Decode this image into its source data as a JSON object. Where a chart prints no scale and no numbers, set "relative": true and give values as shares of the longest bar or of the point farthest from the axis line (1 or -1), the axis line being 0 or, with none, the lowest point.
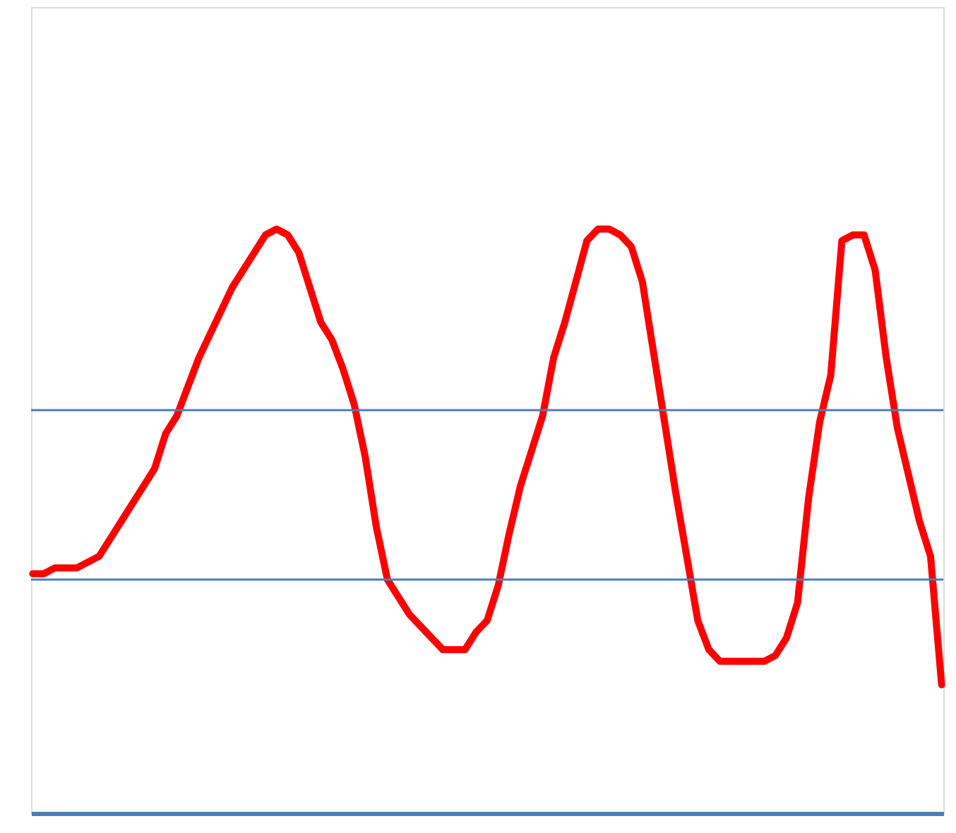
{
  "chart_data": {
    "type": "line",
    "relative": true,
    "line_style": "solid",
    "categories": [
      null,
      null,
      null,
      null,
      null,
      null,
      null,
      null,
      null,
      null,
      null,
      null,
      null,
      null,
      null,
      null,
      null,
      null,
      null,
      null,
      null,
      null,
      null,
      null,
      null,
      null,
      null,
      null,
      null,
      null,
      null,
      null,
      null,
      null,
      null,
      null,
      null,
      null,
      null,
      null,
      null,
      null,
      null,
      null,
      null,
      null,
      null,
      null,
      null,
      null,
      null,
      null,
      null,
      null,
      null,
      null,
      null,
      null,
      null,
      null,
      null,
      null,
      null,
      null,
      null,
      null,
      null,
      null,
      null,
      null,
      null,
      null,
      null,
      null,
      null,
      null,
      null,
      null,
      null,
      null,
      null,
      null,
      null
    ],
    "ref_lines": [
      {
        "axis": "y",
        "value": 0.69,
        "color": "#4a7ebb"
      },
      {
        "axis": "y",
        "value": 0.4,
        "color": "#4a7ebb"
      }
    ],
    "series": [
      {
        "color": "#ff0000",
        "values": [
          0.41,
          0.41,
          0.42,
          0.42,
          0.42,
          0.43,
          0.44,
          0.47,
          0.5,
          0.53,
          0.56,
          0.59,
          0.65,
          0.68,
          0.73,
          0.78,
          0.82,
          0.86,
          0.9,
          0.93,
          0.96,
          0.99,
          1.0,
          0.99,
          0.96,
          0.9,
          0.84,
          0.81,
          0.76,
          0.7,
          0.61,
          0.49,
          0.4,
          0.37,
          0.34,
          0.32,
          0.3,
          0.28,
          0.28,
          0.28,
          0.31,
          0.33,
          0.39,
          0.48,
          0.56,
          0.62,
          0.68,
          0.78,
          0.84,
          0.91,
          0.98,
          1.0,
          1.0,
          0.99,
          0.97,
          0.91,
          0.79,
          0.67,
          0.55,
          0.44,
          0.33,
          0.28,
          0.26,
          0.26,
          0.26,
          0.26,
          0.26,
          0.27,
          0.3,
          0.36,
          0.54,
          0.67,
          0.75,
          0.98,
          0.99,
          0.99,
          0.93,
          0.78,
          0.66,
          0.58,
          0.5,
          0.44,
          0.22
        ]
      }
    ]
  }
}
